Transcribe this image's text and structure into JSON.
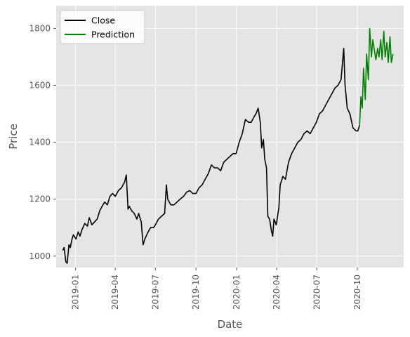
{
  "chart_data": {
    "type": "line",
    "title": "",
    "xlabel": "Date",
    "ylabel": "Price",
    "grid": true,
    "legend_position": "top-left",
    "xlim": [
      "2018-11-18",
      "2021-01-14"
    ],
    "ylim": [
      960,
      1880
    ],
    "x_ticks": [
      "2019-01",
      "2019-04",
      "2019-07",
      "2019-10",
      "2020-01",
      "2020-04",
      "2020-07",
      "2020-10"
    ],
    "x_tick_dates": [
      "2019-01-01",
      "2019-04-01",
      "2019-07-01",
      "2019-10-01",
      "2020-01-01",
      "2020-04-01",
      "2020-07-01",
      "2020-10-01"
    ],
    "y_ticks": [
      1000,
      1200,
      1400,
      1600,
      1800
    ],
    "colors": {
      "Close": "#000000",
      "Prediction": "#008000",
      "plot_bg": "#e5e5e5",
      "grid": "#ffffff"
    },
    "series": [
      {
        "name": "Close",
        "x": [
          "2018-12-03",
          "2018-12-06",
          "2018-12-10",
          "2018-12-13",
          "2018-12-17",
          "2018-12-20",
          "2018-12-24",
          "2018-12-27",
          "2019-01-02",
          "2019-01-07",
          "2019-01-11",
          "2019-01-16",
          "2019-01-22",
          "2019-01-28",
          "2019-02-01",
          "2019-02-07",
          "2019-02-13",
          "2019-02-19",
          "2019-02-25",
          "2019-03-04",
          "2019-03-08",
          "2019-03-14",
          "2019-03-20",
          "2019-03-26",
          "2019-04-01",
          "2019-04-08",
          "2019-04-15",
          "2019-04-22",
          "2019-04-26",
          "2019-04-30",
          "2019-05-03",
          "2019-05-08",
          "2019-05-14",
          "2019-05-20",
          "2019-05-24",
          "2019-05-30",
          "2019-06-03",
          "2019-06-07",
          "2019-06-13",
          "2019-06-20",
          "2019-06-27",
          "2019-07-01",
          "2019-07-08",
          "2019-07-15",
          "2019-07-22",
          "2019-07-26",
          "2019-07-29",
          "2019-08-05",
          "2019-08-12",
          "2019-08-19",
          "2019-08-26",
          "2019-09-03",
          "2019-09-10",
          "2019-09-17",
          "2019-09-24",
          "2019-10-01",
          "2019-10-08",
          "2019-10-15",
          "2019-10-22",
          "2019-10-29",
          "2019-11-05",
          "2019-11-12",
          "2019-11-19",
          "2019-11-26",
          "2019-12-03",
          "2019-12-10",
          "2019-12-17",
          "2019-12-24",
          "2019-12-31",
          "2020-01-07",
          "2020-01-14",
          "2020-01-21",
          "2020-01-28",
          "2020-02-03",
          "2020-02-10",
          "2020-02-14",
          "2020-02-19",
          "2020-02-24",
          "2020-02-27",
          "2020-03-02",
          "2020-03-05",
          "2020-03-09",
          "2020-03-12",
          "2020-03-16",
          "2020-03-18",
          "2020-03-20",
          "2020-03-23",
          "2020-03-26",
          "2020-03-31",
          "2020-04-06",
          "2020-04-09",
          "2020-04-15",
          "2020-04-21",
          "2020-04-28",
          "2020-05-05",
          "2020-05-12",
          "2020-05-19",
          "2020-05-26",
          "2020-06-02",
          "2020-06-09",
          "2020-06-16",
          "2020-06-23",
          "2020-06-30",
          "2020-07-07",
          "2020-07-14",
          "2020-07-21",
          "2020-07-28",
          "2020-08-04",
          "2020-08-11",
          "2020-08-18",
          "2020-08-25",
          "2020-08-31",
          "2020-09-03",
          "2020-09-08",
          "2020-09-14",
          "2020-09-21",
          "2020-09-28",
          "2020-10-02",
          "2020-10-06"
        ],
        "values": [
          1020,
          1030,
          980,
          975,
          1040,
          1030,
          1060,
          1075,
          1060,
          1085,
          1070,
          1095,
          1115,
          1105,
          1135,
          1110,
          1120,
          1130,
          1160,
          1180,
          1190,
          1180,
          1210,
          1220,
          1210,
          1230,
          1240,
          1260,
          1285,
          1165,
          1175,
          1160,
          1150,
          1130,
          1150,
          1120,
          1040,
          1060,
          1080,
          1100,
          1100,
          1110,
          1130,
          1140,
          1150,
          1250,
          1200,
          1180,
          1180,
          1190,
          1200,
          1210,
          1225,
          1230,
          1220,
          1220,
          1240,
          1250,
          1270,
          1290,
          1320,
          1310,
          1310,
          1300,
          1330,
          1340,
          1350,
          1360,
          1360,
          1400,
          1430,
          1480,
          1470,
          1470,
          1490,
          1500,
          1520,
          1470,
          1380,
          1410,
          1340,
          1310,
          1140,
          1130,
          1110,
          1090,
          1070,
          1130,
          1110,
          1170,
          1250,
          1280,
          1270,
          1330,
          1360,
          1380,
          1400,
          1410,
          1430,
          1440,
          1430,
          1450,
          1470,
          1500,
          1510,
          1530,
          1550,
          1570,
          1590,
          1600,
          1620,
          1730,
          1600,
          1520,
          1500,
          1450,
          1440,
          1440,
          1460
        ]
      },
      {
        "name": "Prediction",
        "x": [
          "2020-10-06",
          "2020-10-09",
          "2020-10-12",
          "2020-10-15",
          "2020-10-19",
          "2020-10-22",
          "2020-10-26",
          "2020-10-29",
          "2020-11-02",
          "2020-11-05",
          "2020-11-09",
          "2020-11-12",
          "2020-11-16",
          "2020-11-19",
          "2020-11-23",
          "2020-11-26",
          "2020-11-30",
          "2020-12-03",
          "2020-12-07",
          "2020-12-10",
          "2020-12-14",
          "2020-12-17",
          "2020-12-21"
        ],
        "values": [
          1460,
          1560,
          1520,
          1660,
          1550,
          1710,
          1620,
          1800,
          1700,
          1760,
          1720,
          1690,
          1730,
          1700,
          1760,
          1690,
          1790,
          1700,
          1750,
          1680,
          1770,
          1680,
          1710
        ]
      }
    ]
  }
}
